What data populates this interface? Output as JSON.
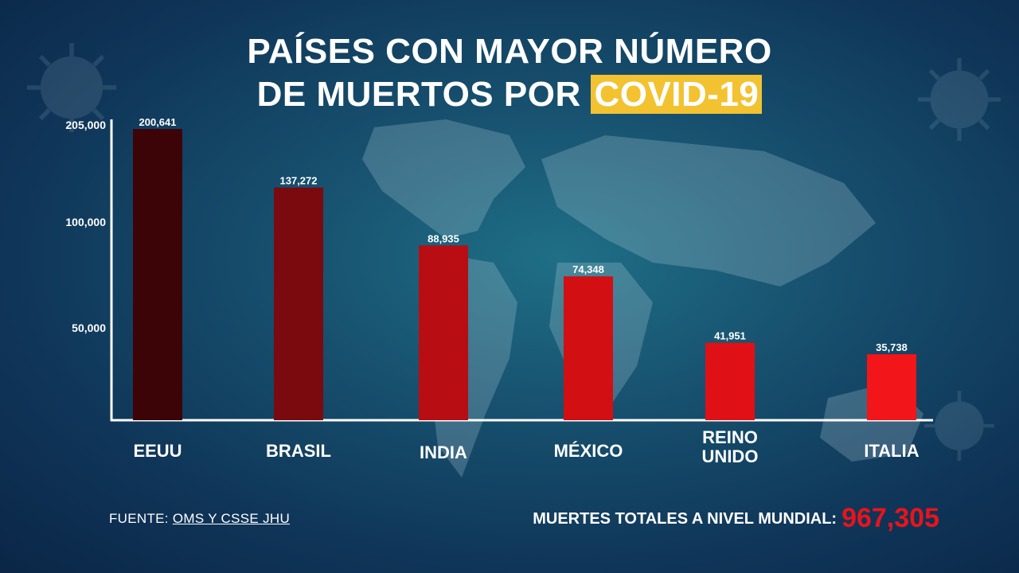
{
  "title": {
    "line1": "PAÍSES CON MAYOR NÚMERO",
    "line2_prefix": "DE MUERTOS POR",
    "line2_highlight": "COVID-19"
  },
  "footer": {
    "source_prefix": "FUENTE:",
    "source_link": "OMS Y CSSE JHU",
    "total_label": "MUERTES TOTALES A NIVEL MUNDIAL:",
    "total_value": "967,305"
  },
  "chart_data": {
    "type": "bar",
    "categories": [
      "EEUU",
      "BRASIL",
      "INDIA",
      "MÉXICO",
      "REINO UNIDO",
      "ITALIA"
    ],
    "values": [
      200641,
      137272,
      88935,
      74348,
      41951,
      35738
    ],
    "value_labels": [
      "200,641",
      "137,272",
      "88,935",
      "74,348",
      "41,951",
      "35,738"
    ],
    "yticks": [
      50000,
      100000,
      205000
    ],
    "ytick_labels": [
      "50,000",
      "100,000",
      "205,000"
    ],
    "bar_colors": [
      "#3d0408",
      "#7a0a0d",
      "#b80d12",
      "#d20f13",
      "#e01116",
      "#f2151a"
    ],
    "grid": false,
    "legend": "none"
  }
}
